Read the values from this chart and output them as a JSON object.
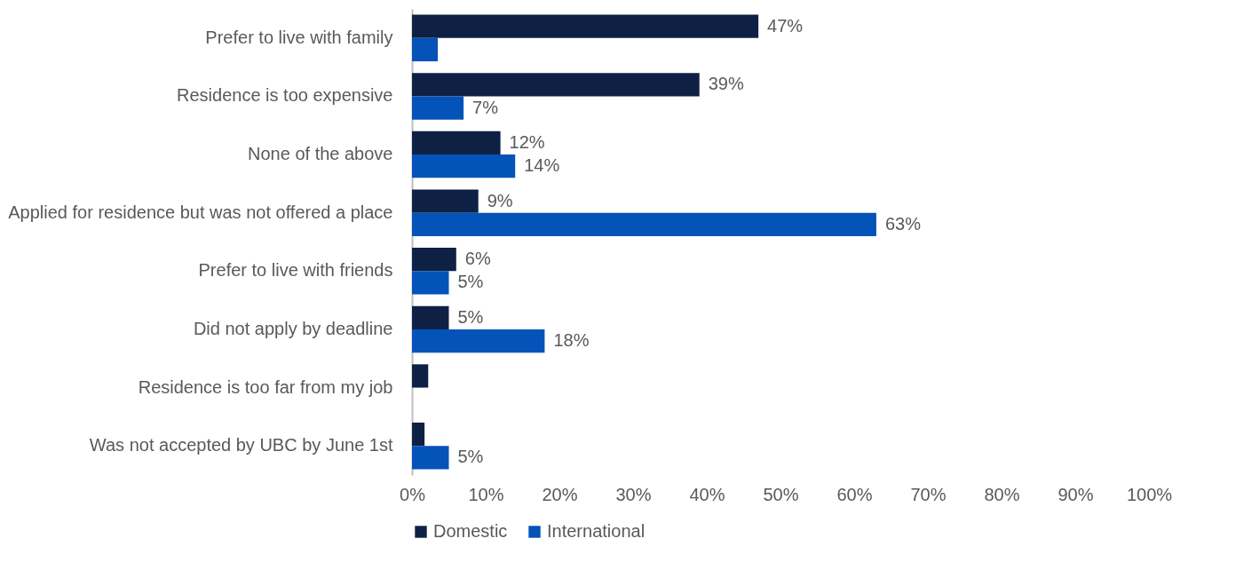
{
  "chart_data": {
    "type": "bar",
    "orientation": "horizontal",
    "categories": [
      "Prefer to live with family",
      "Residence is too expensive",
      "None of the above",
      "Applied for residence but was not offered a place",
      "Prefer to live with friends",
      "Did not apply by deadline",
      "Residence is too far from my job",
      "Was not accepted by UBC by June 1st"
    ],
    "series": [
      {
        "name": "Domestic",
        "color": "#0e2144",
        "values": [
          47,
          39,
          12,
          9,
          6,
          5,
          2.2,
          1.7
        ],
        "value_labels": [
          "47%",
          "39%",
          "12%",
          "9%",
          "6%",
          "5%",
          null,
          null
        ]
      },
      {
        "name": "International",
        "color": "#0353b8",
        "values": [
          3.5,
          7,
          14,
          63,
          5,
          18,
          null,
          5
        ],
        "value_labels": [
          null,
          "7%",
          "14%",
          "63%",
          "5%",
          "18%",
          null,
          "5%"
        ]
      }
    ],
    "xlim": [
      0,
      100
    ],
    "xticks": [
      {
        "value": 0,
        "label": "0%"
      },
      {
        "value": 10,
        "label": "10%"
      },
      {
        "value": 20,
        "label": "20%"
      },
      {
        "value": 30,
        "label": "30%"
      },
      {
        "value": 40,
        "label": "40%"
      },
      {
        "value": 50,
        "label": "50%"
      },
      {
        "value": 60,
        "label": "60%"
      },
      {
        "value": 70,
        "label": "70%"
      },
      {
        "value": 80,
        "label": "80%"
      },
      {
        "value": 90,
        "label": "90%"
      },
      {
        "value": 100,
        "label": "100%"
      }
    ],
    "grid": false,
    "legend": "bottom"
  }
}
